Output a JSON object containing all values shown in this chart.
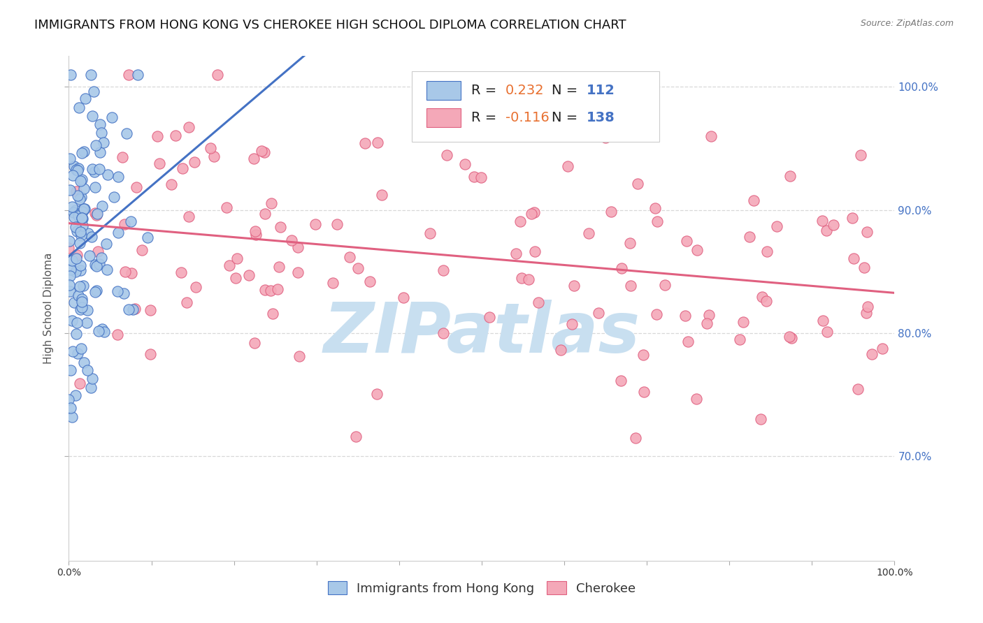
{
  "title": "IMMIGRANTS FROM HONG KONG VS CHEROKEE HIGH SCHOOL DIPLOMA CORRELATION CHART",
  "source": "Source: ZipAtlas.com",
  "ylabel": "High School Diploma",
  "ylabel_ticks": [
    "70.0%",
    "80.0%",
    "90.0%",
    "100.0%"
  ],
  "ylabel_tick_vals": [
    0.7,
    0.8,
    0.9,
    1.0
  ],
  "legend_label1": "Immigrants from Hong Kong",
  "legend_label2": "Cherokee",
  "color_blue": "#a8c8e8",
  "color_pink": "#f4a8b8",
  "line_color_blue": "#4472c4",
  "line_color_pink": "#e06080",
  "watermark": "ZIPatlas",
  "watermark_color": "#c8dff0",
  "title_fontsize": 13,
  "source_fontsize": 9,
  "tick_fontsize": 10,
  "legend_fontsize": 13,
  "ylabel_fontsize": 11,
  "n_blue": 112,
  "n_pink": 138,
  "r_blue": 0.232,
  "r_pink": -0.116,
  "xlim": [
    0.0,
    1.0
  ],
  "ylim": [
    0.615,
    1.025
  ],
  "background_color": "#ffffff",
  "grid_color": "#d8d8d8"
}
